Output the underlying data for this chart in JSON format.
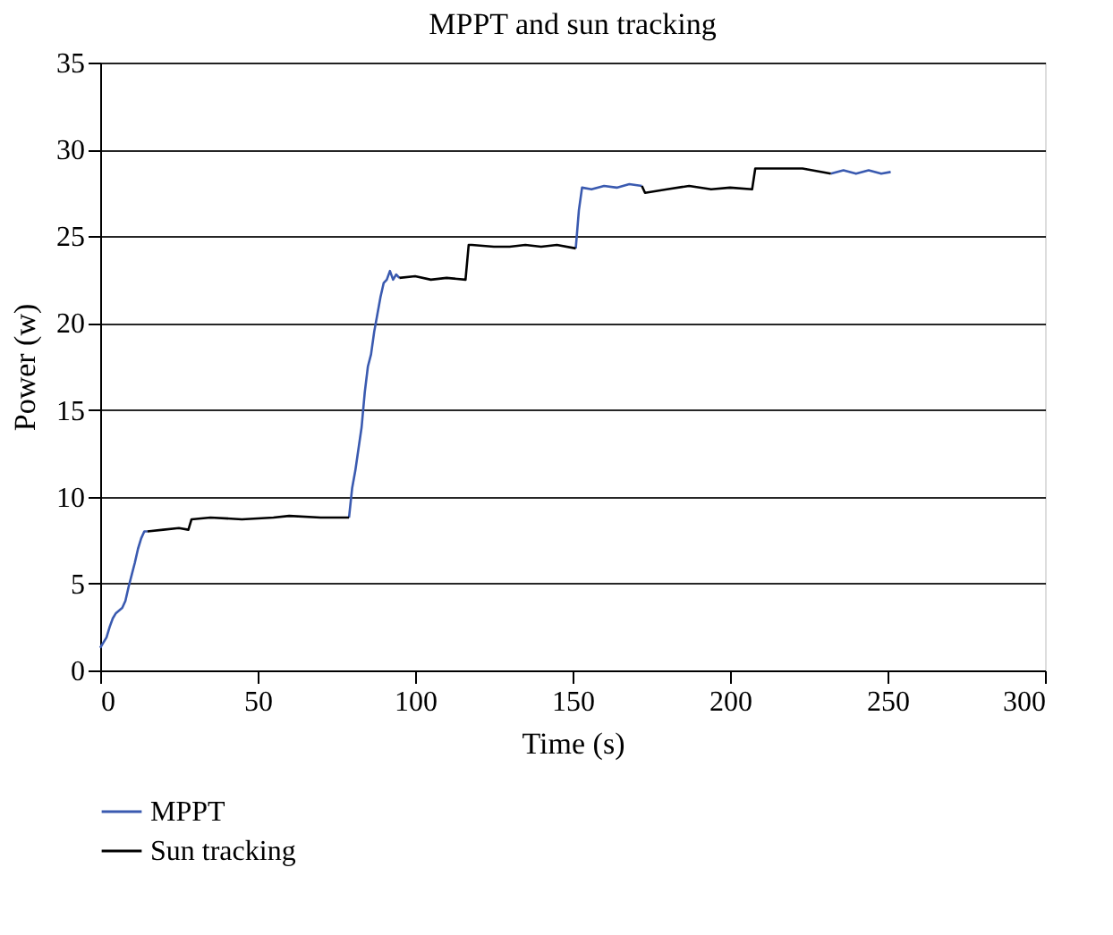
{
  "chart_data": {
    "type": "line",
    "title": "MPPT and sun tracking",
    "xlabel": "Time (s)",
    "ylabel": "Power (w)",
    "xlim": [
      0,
      300
    ],
    "xticks": [
      0,
      50,
      100,
      150,
      200,
      250,
      300
    ],
    "ylim": [
      0,
      35
    ],
    "yticks": [
      0,
      5,
      10,
      15,
      20,
      25,
      30,
      35
    ],
    "grid": "y",
    "legend": "bottom",
    "marker": "none",
    "line_style": "solid",
    "series": [
      {
        "name": "MPPT",
        "color": "#3a5ab0",
        "x": [
          0,
          1,
          2,
          3,
          4,
          5,
          7,
          8,
          9,
          10,
          11,
          12,
          13,
          14,
          15,
          47,
          79,
          80,
          81,
          83,
          84,
          85,
          86,
          87,
          88,
          89,
          90,
          91,
          92,
          93,
          94,
          95,
          123,
          151,
          152,
          153,
          156,
          160,
          164,
          168,
          172,
          200,
          232,
          236,
          240,
          244,
          248,
          251
        ],
        "values": [
          1.3,
          1.6,
          1.9,
          2.5,
          3.0,
          3.3,
          3.6,
          4.0,
          4.8,
          5.5,
          6.2,
          7.0,
          7.6,
          8.0,
          8.0,
          null,
          8.8,
          10.5,
          11.5,
          14,
          16,
          17.5,
          18.2,
          19.5,
          20.5,
          21.5,
          22.3,
          22.5,
          23.0,
          22.5,
          22.8,
          22.6,
          null,
          24.3,
          26.5,
          27.8,
          27.7,
          27.9,
          27.8,
          28.0,
          27.9,
          null,
          28.6,
          28.8,
          28.6,
          28.8,
          28.6,
          28.7
        ]
      },
      {
        "name": "Sun tracking",
        "color": "#000000",
        "x": [
          15,
          20,
          25,
          28,
          29,
          35,
          45,
          55,
          60,
          70,
          79,
          87,
          95,
          100,
          105,
          110,
          116,
          117,
          118,
          125,
          130,
          135,
          140,
          145,
          151,
          161,
          172,
          173,
          180,
          187,
          194,
          200,
          207,
          208,
          215,
          223,
          232
        ],
        "values": [
          8.0,
          8.1,
          8.2,
          8.1,
          8.7,
          8.8,
          8.7,
          8.8,
          8.9,
          8.8,
          8.8,
          null,
          22.6,
          22.7,
          22.5,
          22.6,
          22.5,
          24.5,
          24.5,
          24.4,
          24.4,
          24.5,
          24.4,
          24.5,
          24.3,
          null,
          27.9,
          27.5,
          27.7,
          27.9,
          27.7,
          27.8,
          27.7,
          28.9,
          28.9,
          28.9,
          28.6
        ]
      }
    ]
  }
}
